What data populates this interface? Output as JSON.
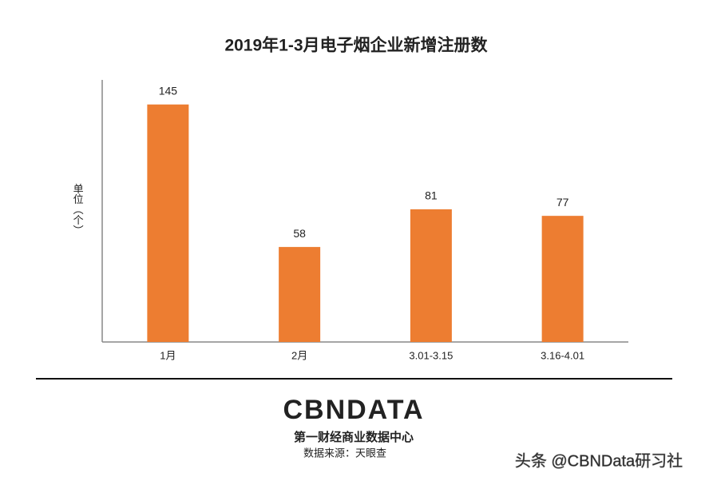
{
  "chart_data": {
    "type": "bar",
    "title": "2019年1-3月电子烟企业新增注册数",
    "y_label": "单位（个）",
    "categories": [
      "1月",
      "2月",
      "3.01-3.15",
      "3.16-4.01"
    ],
    "values": [
      145,
      58,
      81,
      77
    ],
    "color": "#ed7d31",
    "ylim": [
      0,
      160
    ],
    "data_labels": true
  },
  "footer": {
    "logo": "CBNDATA",
    "org": "第一财经商业数据中心",
    "source": "数据来源：天眼查",
    "watermark": "头条 @CBNData研习社"
  }
}
